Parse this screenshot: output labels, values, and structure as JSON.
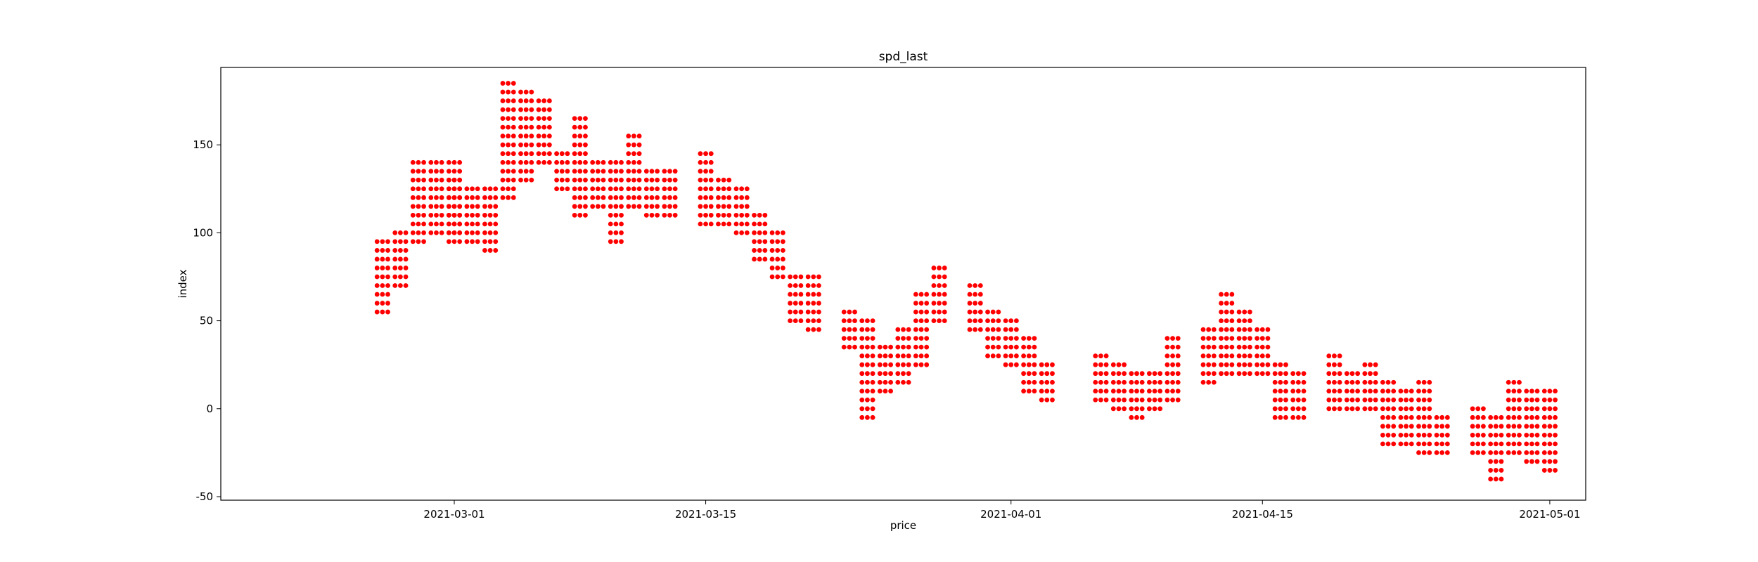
{
  "chart_data": {
    "type": "scatter",
    "title": "spd_last",
    "xlabel": "price",
    "ylabel": "index",
    "x_axis_type": "date",
    "xlim": [
      "2021-02-16",
      "2021-05-03"
    ],
    "ylim": [
      -52,
      194
    ],
    "x_ticks": [
      "2021-03-01",
      "2021-03-15",
      "2021-04-01",
      "2021-04-15",
      "2021-05-01"
    ],
    "y_ticks": [
      -50,
      0,
      50,
      100,
      150
    ],
    "grid": false,
    "legend": "none",
    "series": [
      {
        "color": "#ff0000",
        "marker": "circle",
        "points_per_day": 3,
        "value_step": 5,
        "daily_ranges": [
          {
            "date": "2021-02-25",
            "low": 55,
            "high": 95
          },
          {
            "date": "2021-02-26",
            "low": 70,
            "high": 100
          },
          {
            "date": "2021-02-27",
            "low": 95,
            "high": 140
          },
          {
            "date": "2021-02-28",
            "low": 100,
            "high": 140
          },
          {
            "date": "2021-03-01",
            "low": 100,
            "high": 140
          },
          {
            "date": "2021-03-01",
            "low": 95,
            "high": 130
          },
          {
            "date": "2021-03-02",
            "low": 95,
            "high": 125
          },
          {
            "date": "2021-03-03",
            "low": 90,
            "high": 125
          },
          {
            "date": "2021-03-04",
            "low": 120,
            "high": 185
          },
          {
            "date": "2021-03-05",
            "low": 130,
            "high": 180
          },
          {
            "date": "2021-03-06",
            "low": 140,
            "high": 175
          },
          {
            "date": "2021-03-07",
            "low": 125,
            "high": 145
          },
          {
            "date": "2021-03-08",
            "low": 110,
            "high": 165
          },
          {
            "date": "2021-03-09",
            "low": 115,
            "high": 140
          },
          {
            "date": "2021-03-10",
            "low": 95,
            "high": 140
          },
          {
            "date": "2021-03-11",
            "low": 115,
            "high": 155
          },
          {
            "date": "2021-03-12",
            "low": 110,
            "high": 135
          },
          {
            "date": "2021-03-13",
            "low": 110,
            "high": 135
          },
          {
            "date": "2021-03-15",
            "low": 105,
            "high": 145
          },
          {
            "date": "2021-03-16",
            "low": 105,
            "high": 130
          },
          {
            "date": "2021-03-17",
            "low": 100,
            "high": 125
          },
          {
            "date": "2021-03-18",
            "low": 85,
            "high": 110
          },
          {
            "date": "2021-03-19",
            "low": 75,
            "high": 100
          },
          {
            "date": "2021-03-20",
            "low": 50,
            "high": 75
          },
          {
            "date": "2021-03-21",
            "low": 45,
            "high": 75
          },
          {
            "date": "2021-03-23",
            "low": 35,
            "high": 55
          },
          {
            "date": "2021-03-24",
            "low": -5,
            "high": 50
          },
          {
            "date": "2021-03-25",
            "low": 10,
            "high": 35
          },
          {
            "date": "2021-03-26",
            "low": 15,
            "high": 45
          },
          {
            "date": "2021-03-27",
            "low": 25,
            "high": 65
          },
          {
            "date": "2021-03-28",
            "low": 50,
            "high": 80
          },
          {
            "date": "2021-03-30",
            "low": 45,
            "high": 70
          },
          {
            "date": "2021-03-31",
            "low": 30,
            "high": 55
          },
          {
            "date": "2021-04-01",
            "low": 25,
            "high": 50
          },
          {
            "date": "2021-04-02",
            "low": 10,
            "high": 40
          },
          {
            "date": "2021-04-03",
            "low": 5,
            "high": 25
          },
          {
            "date": "2021-04-06",
            "low": 5,
            "high": 30
          },
          {
            "date": "2021-04-07",
            "low": 0,
            "high": 25
          },
          {
            "date": "2021-04-08",
            "low": -5,
            "high": 20
          },
          {
            "date": "2021-04-09",
            "low": 0,
            "high": 20
          },
          {
            "date": "2021-04-10",
            "low": 5,
            "high": 40
          },
          {
            "date": "2021-04-12",
            "low": 15,
            "high": 45
          },
          {
            "date": "2021-04-13",
            "low": 20,
            "high": 65
          },
          {
            "date": "2021-04-14",
            "low": 20,
            "high": 55
          },
          {
            "date": "2021-04-15",
            "low": 20,
            "high": 45
          },
          {
            "date": "2021-04-16",
            "low": -5,
            "high": 25
          },
          {
            "date": "2021-04-17",
            "low": -5,
            "high": 20
          },
          {
            "date": "2021-04-19",
            "low": 0,
            "high": 30
          },
          {
            "date": "2021-04-20",
            "low": 0,
            "high": 20
          },
          {
            "date": "2021-04-21",
            "low": 0,
            "high": 25
          },
          {
            "date": "2021-04-22",
            "low": -20,
            "high": 15
          },
          {
            "date": "2021-04-23",
            "low": -20,
            "high": 10
          },
          {
            "date": "2021-04-24",
            "low": -25,
            "high": 15
          },
          {
            "date": "2021-04-25",
            "low": -25,
            "high": -5
          },
          {
            "date": "2021-04-27",
            "low": -25,
            "high": 0
          },
          {
            "date": "2021-04-28",
            "low": -40,
            "high": -5
          },
          {
            "date": "2021-04-29",
            "low": -25,
            "high": 15
          },
          {
            "date": "2021-04-30",
            "low": -30,
            "high": 10
          },
          {
            "date": "2021-05-01",
            "low": -35,
            "high": 10
          }
        ]
      }
    ]
  }
}
